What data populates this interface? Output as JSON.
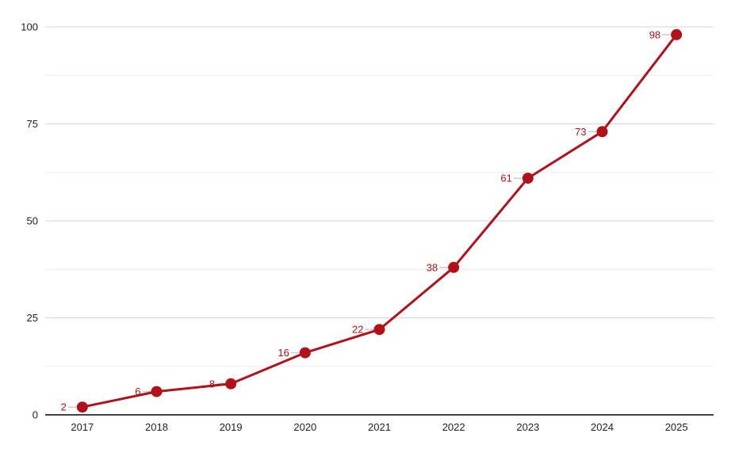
{
  "chart_data": {
    "type": "line",
    "categories": [
      "2017",
      "2018",
      "2019",
      "2020",
      "2021",
      "2022",
      "2023",
      "2024",
      "2025"
    ],
    "values": [
      2,
      6,
      8,
      16,
      22,
      38,
      61,
      73,
      98
    ],
    "data_labels": [
      "2",
      "6",
      "8",
      "16",
      "22",
      "38",
      "61",
      "73",
      "98"
    ],
    "y_ticks": [
      0,
      25,
      50,
      75,
      100
    ],
    "y_tick_labels": [
      "0",
      "25",
      "50",
      "75",
      "100"
    ],
    "ylim": [
      0,
      100
    ],
    "minor_grid_step": 12.5,
    "grid": true,
    "legend_position": "none",
    "title": "",
    "xlabel": "",
    "ylabel": "",
    "marker": "circle",
    "colors": {
      "series": "#b0111b",
      "data_label": "#b0111b",
      "label_stem": "#c9c9c9",
      "major_gridline": "#d5d5d5",
      "minor_gridline": "#ebebeb",
      "axis_line": "#424242",
      "tick_label": "#1f1f1f",
      "background": "#ffffff"
    }
  }
}
